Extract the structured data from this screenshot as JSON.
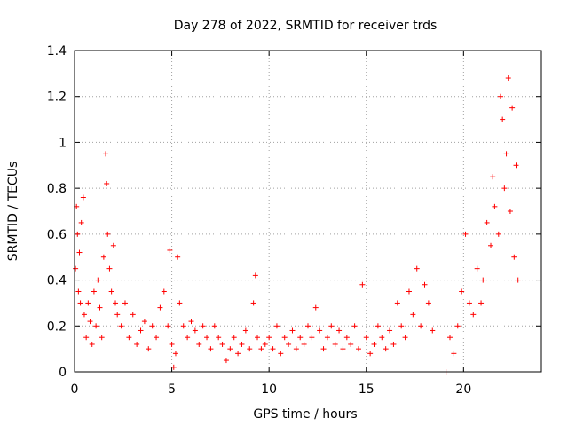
{
  "chart_data": {
    "type": "scatter",
    "title": "Day 278 of 2022, SRMTID for receiver trds",
    "xlabel": "GPS time / hours",
    "ylabel": "SRMTID / TECUs",
    "xlim": [
      0,
      24
    ],
    "ylim": [
      0,
      1.4
    ],
    "xticks": [
      0,
      5,
      10,
      15,
      20
    ],
    "xtick_labels": [
      "0",
      "5",
      "10",
      "15",
      "20"
    ],
    "yticks": [
      0,
      0.2,
      0.4,
      0.6,
      0.8,
      1,
      1.2,
      1.4
    ],
    "ytick_labels": [
      "0",
      "0.2",
      "0.4",
      "0.6",
      "0.8",
      "1",
      "1.2",
      "1.4"
    ],
    "grid": true,
    "marker": "plus",
    "series_color": "#ff0000",
    "series": [
      {
        "name": "SRMTID",
        "x": [
          0.05,
          0.1,
          0.15,
          0.2,
          0.25,
          0.3,
          0.35,
          0.45,
          0.5,
          0.6,
          0.7,
          0.8,
          0.9,
          1.0,
          1.1,
          1.2,
          1.3,
          1.4,
          1.5,
          1.6,
          1.65,
          1.7,
          1.8,
          1.9,
          2.0,
          2.1,
          2.2,
          2.4,
          2.6,
          2.8,
          3.0,
          3.2,
          3.4,
          3.6,
          3.8,
          4.0,
          4.2,
          4.4,
          4.6,
          4.8,
          4.9,
          5.0,
          5.1,
          5.2,
          5.3,
          5.4,
          5.6,
          5.8,
          6.0,
          6.2,
          6.4,
          6.6,
          6.8,
          7.0,
          7.2,
          7.4,
          7.6,
          7.8,
          8.0,
          8.2,
          8.4,
          8.6,
          8.8,
          9.0,
          9.2,
          9.3,
          9.4,
          9.6,
          9.8,
          10.0,
          10.2,
          10.4,
          10.6,
          10.8,
          11.0,
          11.2,
          11.4,
          11.6,
          11.8,
          12.0,
          12.2,
          12.4,
          12.6,
          12.8,
          13.0,
          13.2,
          13.4,
          13.6,
          13.8,
          14.0,
          14.2,
          14.4,
          14.6,
          14.8,
          15.0,
          15.2,
          15.4,
          15.6,
          15.8,
          16.0,
          16.2,
          16.4,
          16.6,
          16.8,
          17.0,
          17.2,
          17.4,
          17.6,
          17.8,
          18.0,
          18.2,
          18.4,
          19.1,
          19.3,
          19.5,
          19.7,
          19.9,
          20.1,
          20.3,
          20.5,
          20.7,
          20.9,
          21.0,
          21.2,
          21.4,
          21.5,
          21.6,
          21.8,
          21.9,
          22.0,
          22.1,
          22.2,
          22.3,
          22.4,
          22.5,
          22.6,
          22.7,
          22.8
        ],
        "y": [
          0.45,
          0.72,
          0.6,
          0.35,
          0.52,
          0.3,
          0.65,
          0.76,
          0.25,
          0.15,
          0.3,
          0.22,
          0.12,
          0.35,
          0.2,
          0.4,
          0.28,
          0.15,
          0.5,
          0.95,
          0.82,
          0.6,
          0.45,
          0.35,
          0.55,
          0.3,
          0.25,
          0.2,
          0.3,
          0.15,
          0.25,
          0.12,
          0.18,
          0.22,
          0.1,
          0.2,
          0.15,
          0.28,
          0.35,
          0.2,
          0.53,
          0.12,
          0.02,
          0.08,
          0.5,
          0.3,
          0.2,
          0.15,
          0.22,
          0.18,
          0.12,
          0.2,
          0.15,
          0.1,
          0.2,
          0.15,
          0.12,
          0.05,
          0.1,
          0.15,
          0.08,
          0.12,
          0.18,
          0.1,
          0.3,
          0.42,
          0.15,
          0.1,
          0.12,
          0.15,
          0.1,
          0.2,
          0.08,
          0.15,
          0.12,
          0.18,
          0.1,
          0.15,
          0.12,
          0.2,
          0.15,
          0.28,
          0.18,
          0.1,
          0.15,
          0.2,
          0.12,
          0.18,
          0.1,
          0.15,
          0.12,
          0.2,
          0.1,
          0.38,
          0.15,
          0.08,
          0.12,
          0.2,
          0.15,
          0.1,
          0.18,
          0.12,
          0.3,
          0.2,
          0.15,
          0.35,
          0.25,
          0.45,
          0.2,
          0.38,
          0.3,
          0.18,
          0.0,
          0.15,
          0.08,
          0.2,
          0.35,
          0.6,
          0.3,
          0.25,
          0.45,
          0.3,
          0.4,
          0.65,
          0.55,
          0.85,
          0.72,
          0.6,
          1.2,
          1.1,
          0.8,
          0.95,
          1.28,
          0.7,
          1.15,
          0.5,
          0.9,
          0.4
        ]
      }
    ]
  }
}
